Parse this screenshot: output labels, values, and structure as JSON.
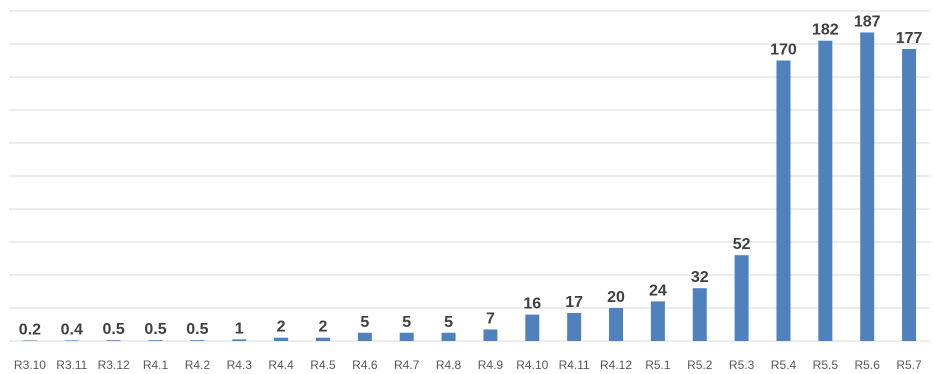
{
  "chart_data": {
    "type": "bar",
    "title": "",
    "xlabel": "",
    "ylabel": "",
    "categories": [
      "R3.10",
      "R3.11",
      "R3.12",
      "R4.1",
      "R4.2",
      "R4.3",
      "R4.4",
      "R4.5",
      "R4.6",
      "R4.7",
      "R4.8",
      "R4.9",
      "R4.10",
      "R4.11",
      "R4.12",
      "R5.1",
      "R5.2",
      "R5.3",
      "R5.4",
      "R5.5",
      "R5.6",
      "R5.7"
    ],
    "values": [
      0.2,
      0.4,
      0.5,
      0.5,
      0.5,
      1,
      2,
      2,
      5,
      5,
      5,
      7,
      16,
      17,
      20,
      24,
      32,
      52,
      170,
      182,
      187,
      177
    ],
    "value_labels": [
      "0.2",
      "0.4",
      "0.5",
      "0.5",
      "0.5",
      "1",
      "2",
      "2",
      "5",
      "5",
      "5",
      "7",
      "16",
      "17",
      "20",
      "24",
      "32",
      "52",
      "170",
      "182",
      "187",
      "177"
    ],
    "ylim": [
      0,
      200
    ],
    "grid": true,
    "gridlines": 10,
    "bar_color": "#4f81bd",
    "grid_color": "#d9d9d9"
  }
}
